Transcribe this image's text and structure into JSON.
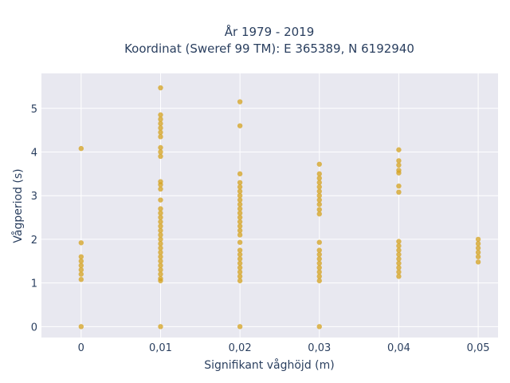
{
  "chart_data": {
    "type": "scatter",
    "title": "År 1979 - 2019",
    "subtitle": "Koordinat (Sweref 99 TM): E 365389, N 6192940",
    "xlabel": "Signifikant våghöjd (m)",
    "ylabel": "Vågperiod (s)",
    "xlim": [
      -0.005,
      0.0525
    ],
    "ylim": [
      -0.25,
      5.8
    ],
    "x_ticks": [
      0,
      0.01,
      0.02,
      0.03,
      0.04,
      0.05
    ],
    "x_tick_labels": [
      "0",
      "0,01",
      "0,02",
      "0,03",
      "0,04",
      "0,05"
    ],
    "y_ticks": [
      0,
      1,
      2,
      3,
      4,
      5
    ],
    "y_tick_labels": [
      "0",
      "1",
      "2",
      "3",
      "4",
      "5"
    ],
    "grid": true,
    "marker_color": "#d4a21d",
    "plot_bg": "#e8e8f0",
    "series": [
      {
        "points": [
          [
            0,
            0
          ],
          [
            0,
            1.08
          ],
          [
            0,
            1.2
          ],
          [
            0,
            1.3
          ],
          [
            0,
            1.4
          ],
          [
            0,
            1.5
          ],
          [
            0,
            1.6
          ],
          [
            0,
            1.92
          ],
          [
            0,
            4.08
          ],
          [
            0.01,
            0
          ],
          [
            0.01,
            1.05
          ],
          [
            0.01,
            1.1
          ],
          [
            0.01,
            1.2
          ],
          [
            0.01,
            1.3
          ],
          [
            0.01,
            1.4
          ],
          [
            0.01,
            1.5
          ],
          [
            0.01,
            1.6
          ],
          [
            0.01,
            1.7
          ],
          [
            0.01,
            1.8
          ],
          [
            0.01,
            1.9
          ],
          [
            0.01,
            2.0
          ],
          [
            0.01,
            2.1
          ],
          [
            0.01,
            2.2
          ],
          [
            0.01,
            2.3
          ],
          [
            0.01,
            2.4
          ],
          [
            0.01,
            2.5
          ],
          [
            0.01,
            2.6
          ],
          [
            0.01,
            2.7
          ],
          [
            0.01,
            2.9
          ],
          [
            0.01,
            3.15
          ],
          [
            0.01,
            3.25
          ],
          [
            0.01,
            3.32
          ],
          [
            0.01,
            3.9
          ],
          [
            0.01,
            4.0
          ],
          [
            0.01,
            4.1
          ],
          [
            0.01,
            4.35
          ],
          [
            0.01,
            4.45
          ],
          [
            0.01,
            4.55
          ],
          [
            0.01,
            4.65
          ],
          [
            0.01,
            4.75
          ],
          [
            0.01,
            4.85
          ],
          [
            0.01,
            5.47
          ],
          [
            0.02,
            0
          ],
          [
            0.02,
            1.05
          ],
          [
            0.02,
            1.15
          ],
          [
            0.02,
            1.25
          ],
          [
            0.02,
            1.35
          ],
          [
            0.02,
            1.45
          ],
          [
            0.02,
            1.55
          ],
          [
            0.02,
            1.65
          ],
          [
            0.02,
            1.75
          ],
          [
            0.02,
            1.93
          ],
          [
            0.02,
            2.1
          ],
          [
            0.02,
            2.2
          ],
          [
            0.02,
            2.3
          ],
          [
            0.02,
            2.4
          ],
          [
            0.02,
            2.5
          ],
          [
            0.02,
            2.6
          ],
          [
            0.02,
            2.7
          ],
          [
            0.02,
            2.8
          ],
          [
            0.02,
            2.9
          ],
          [
            0.02,
            3.0
          ],
          [
            0.02,
            3.1
          ],
          [
            0.02,
            3.2
          ],
          [
            0.02,
            3.3
          ],
          [
            0.02,
            3.5
          ],
          [
            0.02,
            4.6
          ],
          [
            0.02,
            5.15
          ],
          [
            0.03,
            0
          ],
          [
            0.03,
            1.05
          ],
          [
            0.03,
            1.15
          ],
          [
            0.03,
            1.25
          ],
          [
            0.03,
            1.35
          ],
          [
            0.03,
            1.45
          ],
          [
            0.03,
            1.55
          ],
          [
            0.03,
            1.65
          ],
          [
            0.03,
            1.75
          ],
          [
            0.03,
            1.93
          ],
          [
            0.03,
            2.58
          ],
          [
            0.03,
            2.68
          ],
          [
            0.03,
            2.8
          ],
          [
            0.03,
            2.9
          ],
          [
            0.03,
            3.0
          ],
          [
            0.03,
            3.1
          ],
          [
            0.03,
            3.2
          ],
          [
            0.03,
            3.3
          ],
          [
            0.03,
            3.4
          ],
          [
            0.03,
            3.5
          ],
          [
            0.03,
            3.72
          ],
          [
            0.04,
            1.15
          ],
          [
            0.04,
            1.25
          ],
          [
            0.04,
            1.35
          ],
          [
            0.04,
            1.45
          ],
          [
            0.04,
            1.55
          ],
          [
            0.04,
            1.65
          ],
          [
            0.04,
            1.75
          ],
          [
            0.04,
            1.85
          ],
          [
            0.04,
            1.95
          ],
          [
            0.04,
            3.08
          ],
          [
            0.04,
            3.22
          ],
          [
            0.04,
            3.52
          ],
          [
            0.04,
            3.58
          ],
          [
            0.04,
            3.7
          ],
          [
            0.04,
            3.8
          ],
          [
            0.04,
            4.05
          ],
          [
            0.05,
            1.48
          ],
          [
            0.05,
            1.6
          ],
          [
            0.05,
            1.7
          ],
          [
            0.05,
            1.8
          ],
          [
            0.05,
            1.9
          ],
          [
            0.05,
            2.0
          ]
        ]
      }
    ]
  }
}
